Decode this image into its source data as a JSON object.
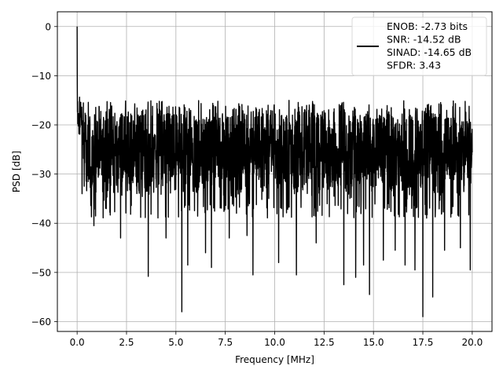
{
  "chart_data": {
    "type": "line",
    "title": "",
    "xlabel": "Frequency [MHz]",
    "ylabel": "PSD [dB]",
    "xlim": [
      -1.0,
      21.0
    ],
    "ylim": [
      -62.0,
      3.0
    ],
    "xticks": [
      0.0,
      2.5,
      5.0,
      7.5,
      10.0,
      12.5,
      15.0,
      17.5,
      20.0
    ],
    "xtick_labels": [
      "0.0",
      "2.5",
      "5.0",
      "7.5",
      "10.0",
      "12.5",
      "15.0",
      "17.5",
      "20.0"
    ],
    "yticks": [
      0,
      -10,
      -20,
      -30,
      -40,
      -50,
      -60
    ],
    "ytick_labels": [
      "0",
      "−10",
      "−20",
      "−30",
      "−40",
      "−50",
      "−60"
    ],
    "grid": true,
    "legend_position": "top-right",
    "legend_entries": [
      "ENOB: -2.73 bits",
      "SNR: -14.52 dB",
      "SINAD: -14.65 dB",
      "SFDR: 3.43"
    ],
    "series": [
      {
        "color": "#000000",
        "x_range": [
          0.0,
          20.0
        ],
        "baseline_db": -25.5,
        "noise_floor_range_db": [
          -36,
          -15
        ],
        "peak": {
          "x": 0.0,
          "y": 0.0
        },
        "deep_nulls": [
          {
            "x": 0.25,
            "y": -34.0
          },
          {
            "x": 0.85,
            "y": -40.5
          },
          {
            "x": 2.2,
            "y": -43.0
          },
          {
            "x": 3.6,
            "y": -50.8
          },
          {
            "x": 4.5,
            "y": -43.0
          },
          {
            "x": 5.3,
            "y": -58.0
          },
          {
            "x": 5.6,
            "y": -48.5
          },
          {
            "x": 6.5,
            "y": -46.0
          },
          {
            "x": 6.8,
            "y": -49.0
          },
          {
            "x": 7.7,
            "y": -43.0
          },
          {
            "x": 8.6,
            "y": -42.5
          },
          {
            "x": 8.9,
            "y": -50.5
          },
          {
            "x": 10.2,
            "y": -48.0
          },
          {
            "x": 11.1,
            "y": -50.5
          },
          {
            "x": 12.1,
            "y": -44.0
          },
          {
            "x": 13.5,
            "y": -52.5
          },
          {
            "x": 14.1,
            "y": -51.0
          },
          {
            "x": 14.5,
            "y": -48.5
          },
          {
            "x": 14.8,
            "y": -54.5
          },
          {
            "x": 15.5,
            "y": -47.5
          },
          {
            "x": 16.1,
            "y": -45.5
          },
          {
            "x": 16.6,
            "y": -48.5
          },
          {
            "x": 17.1,
            "y": -49.5
          },
          {
            "x": 17.5,
            "y": -59.0
          },
          {
            "x": 18.0,
            "y": -55.0
          },
          {
            "x": 18.6,
            "y": -45.5
          },
          {
            "x": 19.4,
            "y": -45.0
          },
          {
            "x": 19.9,
            "y": -49.5
          }
        ]
      }
    ]
  }
}
